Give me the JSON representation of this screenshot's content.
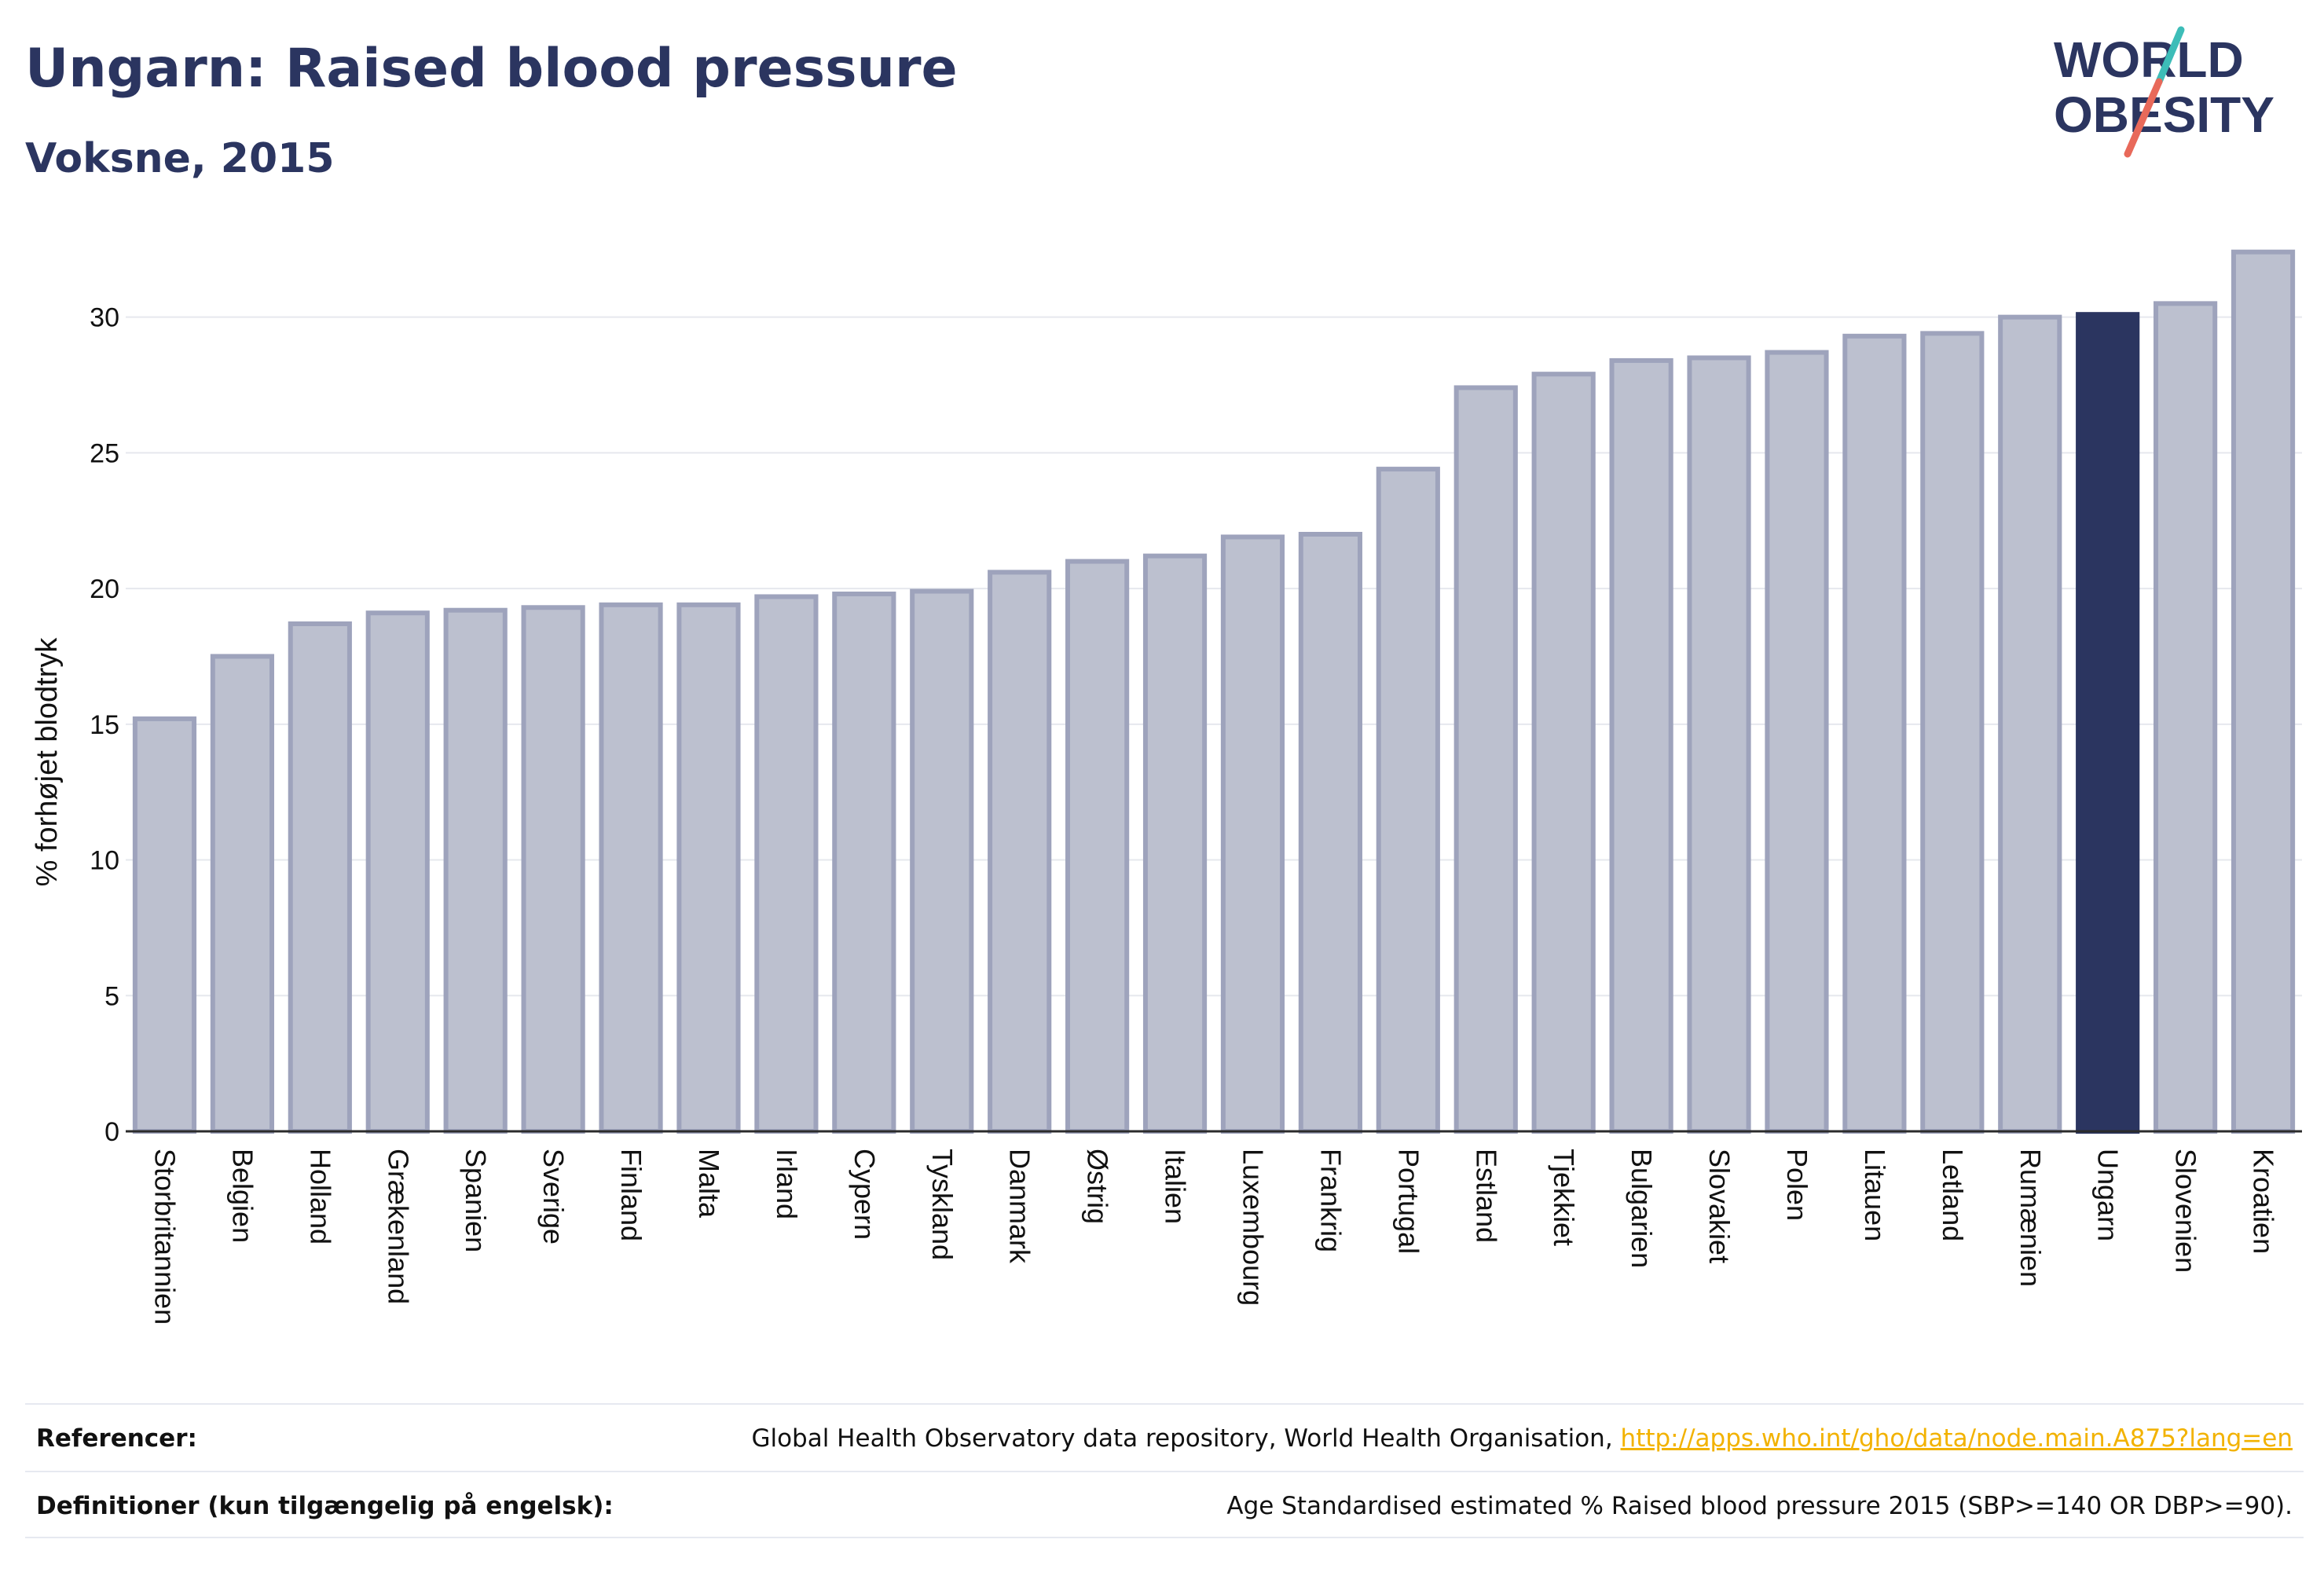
{
  "header": {
    "title": "Ungarn: Raised blood pressure",
    "subtitle": "Voksne, 2015",
    "logo_line1": "WORLD",
    "logo_line2": "OBESITY"
  },
  "colors": {
    "bar": "#bcc0cf",
    "bar_stroke": "#9ea3bc",
    "highlight": "#2b3560",
    "grid": "#e6e8ee",
    "logo_text": "#2b3560",
    "logo_teal": "#3dbdb8",
    "logo_coral": "#e8695a",
    "link": "#f2b200"
  },
  "chart_data": {
    "type": "bar",
    "categories": [
      "Storbritannien",
      "Belgien",
      "Holland",
      "Grækenland",
      "Spanien",
      "Sverige",
      "Finland",
      "Malta",
      "Irland",
      "Cypern",
      "Tyskland",
      "Danmark",
      "Østrig",
      "Italien",
      "Luxembourg",
      "Frankrig",
      "Portugal",
      "Estland",
      "Tjekkiet",
      "Bulgarien",
      "Slovakiet",
      "Polen",
      "Litauen",
      "Letland",
      "Rumænien",
      "Ungarn",
      "Slovenien",
      "Kroatien"
    ],
    "values": [
      15.2,
      17.5,
      18.7,
      19.1,
      19.2,
      19.3,
      19.4,
      19.4,
      19.7,
      19.8,
      19.9,
      20.6,
      21.0,
      21.2,
      21.9,
      22.0,
      24.4,
      27.4,
      27.9,
      28.4,
      28.5,
      28.7,
      29.3,
      29.4,
      30.0,
      30.1,
      30.5,
      32.4
    ],
    "highlight_category": "Ungarn",
    "ylabel": "% forhøjet blodtryk",
    "yticks": [
      0,
      5,
      10,
      15,
      20,
      25,
      30
    ],
    "ylim": [
      0,
      33
    ],
    "grid": true,
    "legend": "none"
  },
  "references": {
    "refs_label": "Referencer:",
    "refs_text": "Global Health Observatory data repository, World Health Organisation, ",
    "refs_link": "http://apps.who.int/gho/data/node.main.A875?lang=en",
    "def_label": "Definitioner (kun tilgængelig på engelsk):",
    "def_text": "Age Standardised estimated % Raised blood pressure 2015 (SBP>=140 OR DBP>=90)."
  }
}
